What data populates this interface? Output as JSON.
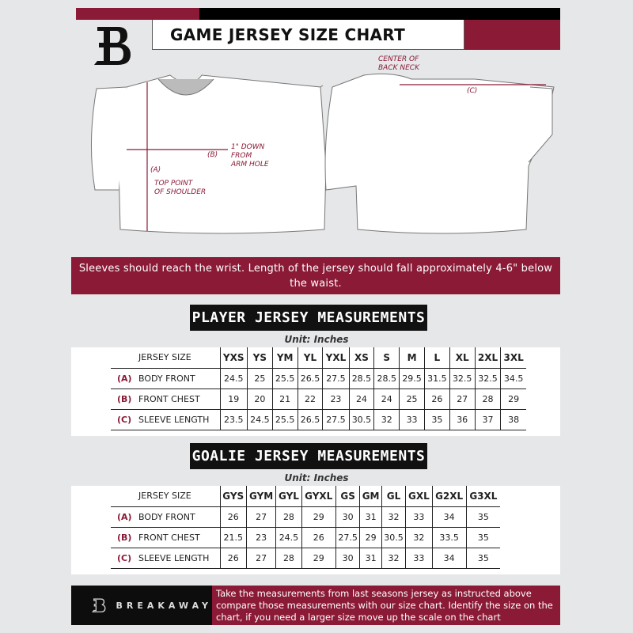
{
  "header": {
    "title": "GAME JERSEY SIZE CHART",
    "logo_letter": "B"
  },
  "diagram": {
    "label_a": "(A)",
    "label_a_note": "TOP POINT\nOF SHOULDER",
    "label_b": "(B)",
    "label_b_note": "1\" DOWN\nFROM\nARM HOLE",
    "label_c": "(C)",
    "label_c_note": "CENTER OF\nBACK NECK"
  },
  "banner": {
    "text": "Sleeves should reach the wrist. Length of the jersey should fall approximately 4-6\" below the waist."
  },
  "player": {
    "title": "PLAYER JERSEY MEASUREMENTS",
    "unit": "Unit: Inches",
    "header_label": "JERSEY SIZE",
    "sizes": [
      "YXS",
      "YS",
      "YM",
      "YL",
      "YXL",
      "XS",
      "S",
      "M",
      "L",
      "XL",
      "2XL",
      "3XL"
    ],
    "rows": [
      {
        "letter": "(A)",
        "label": "BODY FRONT",
        "values": [
          "24.5",
          "25",
          "25.5",
          "26.5",
          "27.5",
          "28.5",
          "28.5",
          "29.5",
          "31.5",
          "32.5",
          "32.5",
          "34.5"
        ]
      },
      {
        "letter": "(B)",
        "label": "FRONT CHEST",
        "values": [
          "19",
          "20",
          "21",
          "22",
          "23",
          "24",
          "24",
          "25",
          "26",
          "27",
          "28",
          "29"
        ]
      },
      {
        "letter": "(C)",
        "label": "SLEEVE LENGTH",
        "values": [
          "23.5",
          "24.5",
          "25.5",
          "26.5",
          "27.5",
          "30.5",
          "32",
          "33",
          "35",
          "36",
          "37",
          "38"
        ]
      }
    ]
  },
  "goalie": {
    "title": "GOALIE JERSEY MEASUREMENTS",
    "unit": "Unit: Inches",
    "header_label": "JERSEY SIZE",
    "sizes": [
      "GYS",
      "GYM",
      "GYL",
      "GYXL",
      "GS",
      "GM",
      "GL",
      "GXL",
      "G2XL",
      "G3XL"
    ],
    "rows": [
      {
        "letter": "(A)",
        "label": "BODY FRONT",
        "values": [
          "26",
          "27",
          "28",
          "29",
          "30",
          "31",
          "32",
          "33",
          "34",
          "35"
        ]
      },
      {
        "letter": "(B)",
        "label": "FRONT CHEST",
        "values": [
          "21.5",
          "23",
          "24.5",
          "26",
          "27.5",
          "29",
          "30.5",
          "32",
          "33.5",
          "35"
        ]
      },
      {
        "letter": "(C)",
        "label": "SLEEVE LENGTH",
        "values": [
          "26",
          "27",
          "28",
          "29",
          "30",
          "31",
          "32",
          "33",
          "34",
          "35"
        ]
      }
    ]
  },
  "footer": {
    "brand": "BREAKAWAY",
    "text": "Take the measurements from last seasons jersey as instructed above compare those measurements  with our size chart. Identify the size on the chart, if you need a larger size move up the scale on the chart"
  },
  "colors": {
    "accent": "#8a1a36",
    "dark": "#111111",
    "background": "#e6e7e9"
  }
}
